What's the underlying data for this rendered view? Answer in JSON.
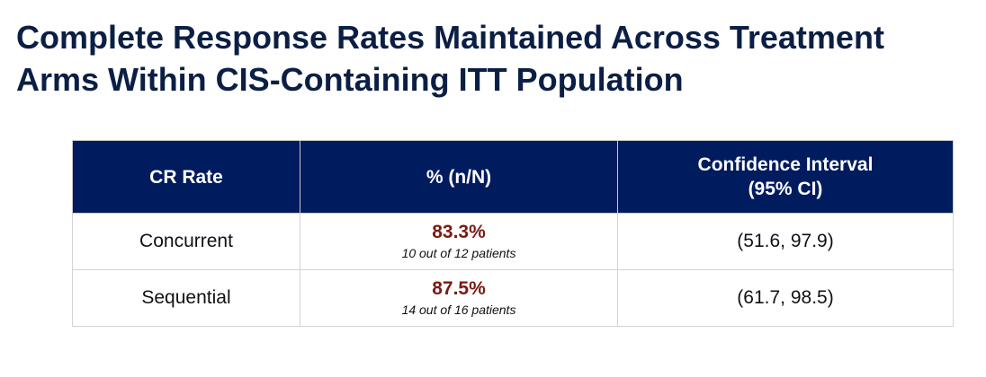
{
  "title": {
    "line1": "Complete Response Rates Maintained Across Treatment",
    "line2": "Arms Within CIS-Containing ITT Population"
  },
  "table": {
    "headers": {
      "col1": "CR Rate",
      "col2": "% (n/N)",
      "col3_line1": "Confidence Interval",
      "col3_line2": "(95% CI)"
    },
    "rows": [
      {
        "label": "Concurrent",
        "percent": "83.3%",
        "patients": "10 out of 12 patients",
        "ci": "(51.6, 97.9)"
      },
      {
        "label": "Sequential",
        "percent": "87.5%",
        "patients": "14 out of 16 patients",
        "ci": "(61.7, 98.5)"
      }
    ]
  },
  "colors": {
    "title": "#0b1f45",
    "header_bg": "#001b5e",
    "header_text": "#ffffff",
    "percent_text": "#7a1a12"
  }
}
